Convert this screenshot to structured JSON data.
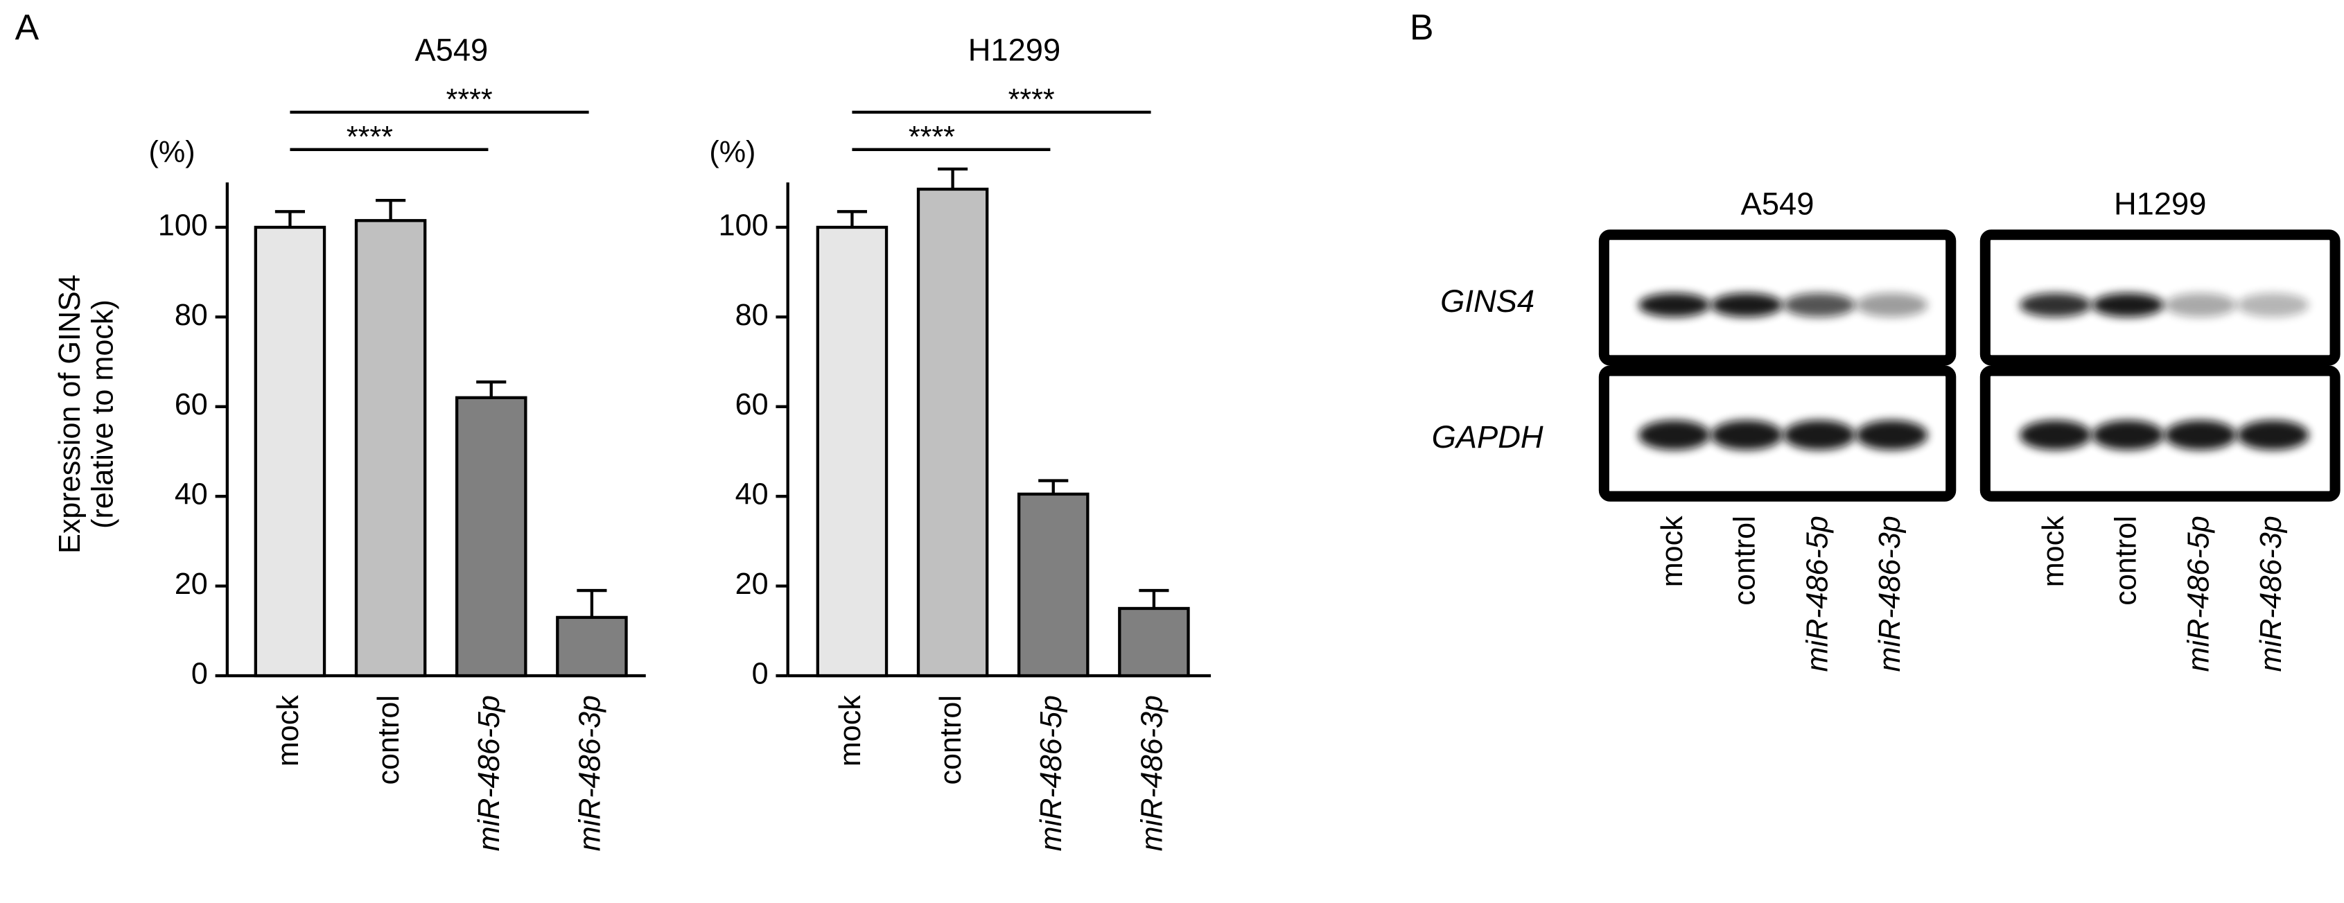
{
  "panel_a": "A",
  "chart_data": [
    {
      "type": "bar",
      "title": "A549",
      "unit": "(%)",
      "ylabel": [
        "Expression of GINS4",
        "(relative to mock)"
      ],
      "categories": [
        "mock",
        "control",
        "miR-486-5p",
        "miR-486-3p"
      ],
      "values": [
        100,
        101.5,
        62,
        13
      ],
      "errors": [
        3.5,
        4.5,
        3.5,
        6
      ],
      "colors": [
        "#e6e6e6",
        "#c0c0c0",
        "#808080",
        "#808080"
      ],
      "ylim": [
        0,
        110
      ],
      "yticks": [
        0,
        20,
        40,
        60,
        80,
        100
      ],
      "annotations": [
        {
          "text": "****",
          "from": "mock",
          "to": "miR-486-5p"
        },
        {
          "text": "****",
          "from": "mock",
          "to": "miR-486-3p"
        }
      ]
    },
    {
      "type": "bar",
      "title": "H1299",
      "unit": "(%)",
      "categories": [
        "mock",
        "control",
        "miR-486-5p",
        "miR-486-3p"
      ],
      "values": [
        100,
        108.5,
        40.5,
        15
      ],
      "errors": [
        3.5,
        4.5,
        3,
        4
      ],
      "colors": [
        "#e6e6e6",
        "#c0c0c0",
        "#808080",
        "#808080"
      ],
      "ylim": [
        0,
        110
      ],
      "yticks": [
        0,
        20,
        40,
        60,
        80,
        100
      ],
      "annotations": [
        {
          "text": "****",
          "from": "mock",
          "to": "miR-486-5p"
        },
        {
          "text": "****",
          "from": "mock",
          "to": "miR-486-3p"
        }
      ]
    }
  ],
  "blot": {
    "panel": "B",
    "cell_lines": [
      "A549",
      "H1299"
    ],
    "rows": [
      "GINS4",
      "GAPDH"
    ],
    "lanes": [
      "mock",
      "control",
      "miR-486-5p",
      "miR-486-3p"
    ]
  }
}
